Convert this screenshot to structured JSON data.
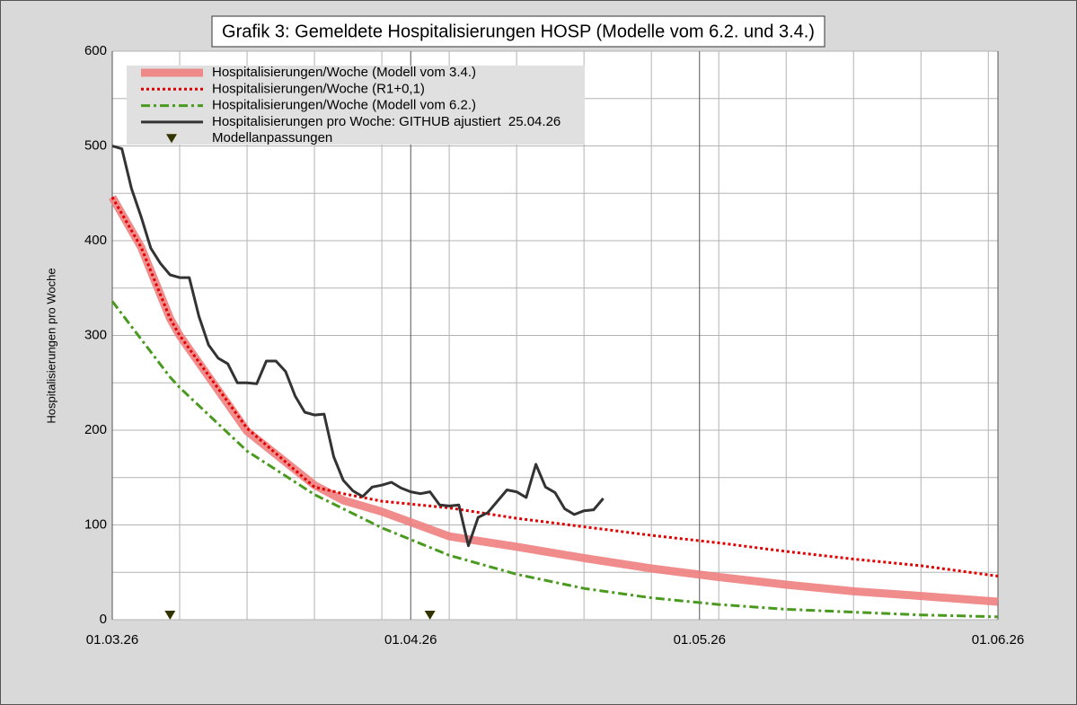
{
  "chart_data": {
    "type": "line",
    "title": "Grafik 3: Gemeldete Hospitalisierungen HOSP (Modelle vom 6.2. und 3.4.)",
    "y_label": "Hospitalisierungen pro Woche",
    "xlim": [
      0,
      92
    ],
    "xticks": [
      {
        "value": 0,
        "label": "01.03.26"
      },
      {
        "value": 31,
        "label": "01.04.26"
      },
      {
        "value": 61,
        "label": "01.05.26"
      },
      {
        "value": 92,
        "label": "01.06.26"
      }
    ],
    "x_minor_grid": [
      7,
      14,
      21,
      28,
      35,
      42,
      49,
      56,
      63,
      70,
      77,
      84,
      91
    ],
    "ylim": [
      0,
      600
    ],
    "yticks": [
      0,
      100,
      200,
      300,
      400,
      500,
      600
    ],
    "y_minor_grid": [
      50,
      150,
      250,
      350,
      450,
      550
    ],
    "grid": true,
    "legend": "top-left",
    "series": [
      {
        "name": "Hospitalisierungen/Woche (Modell vom 3.4.)",
        "color": "#f08080",
        "style": "thick",
        "x": [
          0,
          3,
          6,
          7,
          14,
          21,
          24,
          28,
          35,
          42,
          49,
          56,
          63,
          70,
          77,
          84,
          92
        ],
        "values": [
          446,
          393,
          318,
          300,
          199,
          142,
          126,
          114,
          88,
          77,
          65,
          54,
          45,
          37,
          30,
          25,
          19
        ]
      },
      {
        "name": "Hospitalisierungen/Woche (R1+0,1)",
        "color": "#e00000",
        "style": "dotted",
        "x": [
          0,
          3,
          6,
          7,
          14,
          21,
          24,
          28,
          35,
          42,
          49,
          56,
          63,
          70,
          77,
          84,
          92
        ],
        "values": [
          446,
          393,
          318,
          300,
          202,
          140,
          133,
          125,
          118,
          107,
          98,
          89,
          81,
          72,
          64,
          57,
          46
        ]
      },
      {
        "name": "Hospitalisierungen/Woche (Modell vom 6.2.)",
        "color": "#4a9a20",
        "style": "dashdot",
        "x": [
          0,
          6,
          7,
          14,
          21,
          28,
          35,
          42,
          49,
          56,
          63,
          70,
          77,
          84,
          92
        ],
        "values": [
          336,
          256,
          245,
          178,
          132,
          97,
          68,
          48,
          33,
          23,
          16,
          11,
          8,
          5,
          3
        ]
      },
      {
        "name": "Hospitalisierungen pro Woche: GITHUB ajustiert  25.04.26",
        "color": "#333333",
        "style": "solid",
        "x": [
          0,
          1,
          2,
          3,
          4,
          5,
          6,
          7,
          8,
          9,
          10,
          11,
          12,
          13,
          14,
          15,
          16,
          17,
          18,
          19,
          20,
          21,
          22,
          23,
          24,
          25,
          26,
          27,
          28,
          29,
          30,
          31,
          32,
          33,
          34,
          35,
          36,
          37,
          38,
          39,
          40,
          41,
          42,
          43,
          44,
          45,
          46,
          47,
          48,
          49,
          50,
          51
        ],
        "values": [
          500,
          497,
          455,
          425,
          392,
          376,
          364,
          361,
          361,
          320,
          290,
          276,
          270,
          250,
          250,
          249,
          273,
          273,
          262,
          236,
          219,
          216,
          217,
          172,
          147,
          136,
          130,
          140,
          142,
          145,
          139,
          135,
          133,
          135,
          121,
          120,
          121,
          78,
          108,
          113,
          125,
          137,
          135,
          129,
          164,
          140,
          134,
          117,
          111,
          115,
          116,
          128
        ]
      },
      {
        "name": "Modellanpassungen",
        "color": "#333300",
        "style": "marker",
        "x": [
          6,
          33
        ],
        "values": [
          0,
          0
        ]
      }
    ]
  }
}
